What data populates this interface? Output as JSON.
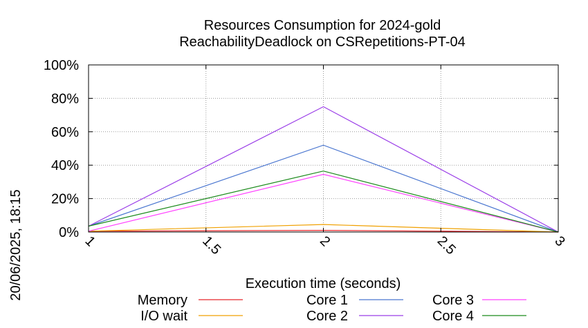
{
  "chart_data": {
    "type": "line",
    "title": "Resources Consumption for 2024-gold",
    "subtitle": "ReachabilityDeadlock on CSRepetitions-PT-04",
    "xlabel": "Execution time (seconds)",
    "ylabel": "",
    "side_label": "20/06/2025, 18:15",
    "xlim": [
      1,
      3
    ],
    "ylim": [
      0,
      100
    ],
    "x_ticks": [
      1,
      1.5,
      2,
      2.5,
      3
    ],
    "x_tick_labels": [
      "1",
      "1.5",
      "2",
      "2.5",
      "3"
    ],
    "y_ticks": [
      0,
      20,
      40,
      60,
      80,
      100
    ],
    "y_tick_labels": [
      "0%",
      "20%",
      "40%",
      "60%",
      "80%",
      "100%"
    ],
    "grid": true,
    "legend_position": "bottom",
    "series": [
      {
        "name": "Memory",
        "color": "#e8262b",
        "x": [
          1,
          2,
          3
        ],
        "y": [
          0.5,
          1,
          0
        ]
      },
      {
        "name": "I/O wait",
        "color": "#f0a000",
        "x": [
          1,
          2,
          3
        ],
        "y": [
          0.5,
          4.5,
          0
        ]
      },
      {
        "name": "Core 1",
        "color": "#4a76d0",
        "x": [
          1,
          2,
          3
        ],
        "y": [
          3.5,
          52,
          0
        ]
      },
      {
        "name": "Core 2",
        "color": "#9b3ee8",
        "x": [
          1,
          2,
          3
        ],
        "y": [
          3.5,
          75,
          0
        ]
      },
      {
        "name": "Core 3",
        "color": "#ff40ff",
        "x": [
          1,
          2,
          3
        ],
        "y": [
          0.5,
          34.5,
          0
        ]
      },
      {
        "name": "Core 4",
        "color": "#1a8a1a",
        "x": [
          1,
          2,
          3
        ],
        "y": [
          3.5,
          36.5,
          0
        ]
      }
    ]
  }
}
